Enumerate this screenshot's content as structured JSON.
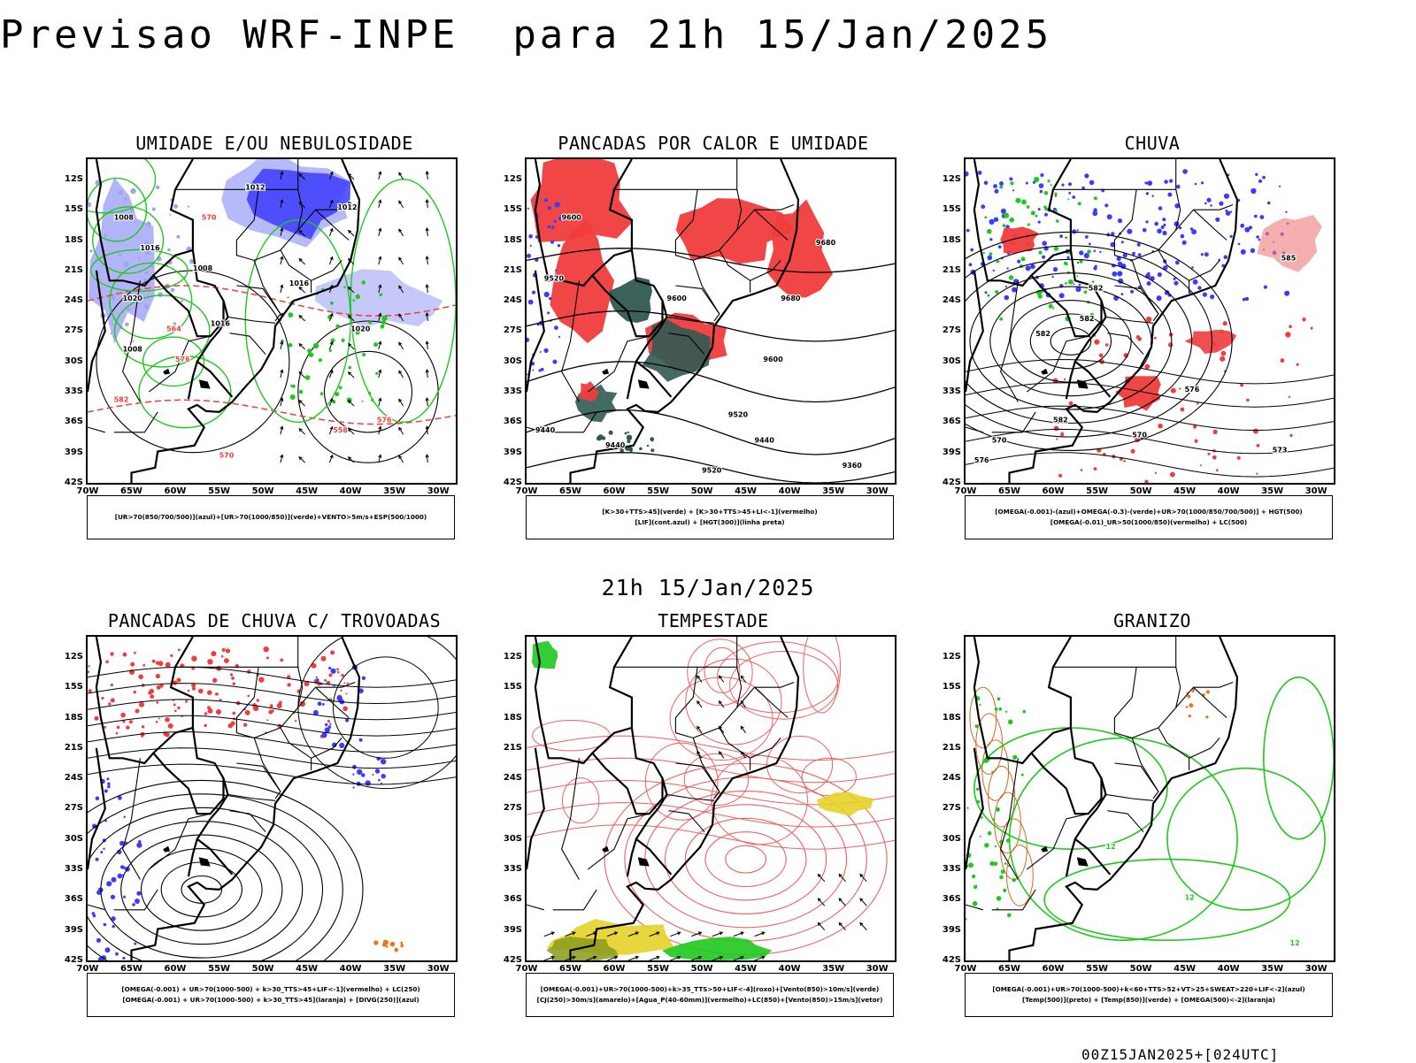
{
  "header": {
    "title": "Previsao WRF-INPE  para 21h 15/Jan/2025",
    "subtitle": "21h 15/Jan/2025",
    "footer": "00Z15JAN2025+[024UTC]"
  },
  "axes": {
    "lat_labels": [
      "12S",
      "15S",
      "18S",
      "21S",
      "24S",
      "27S",
      "30S",
      "33S",
      "36S",
      "39S",
      "42S"
    ],
    "lon_labels": [
      "70W",
      "65W",
      "60W",
      "55W",
      "50W",
      "45W",
      "40W",
      "35W",
      "30W"
    ]
  },
  "panels": [
    {
      "title": "UMIDADE E/OU NEBULOSIDADE",
      "legend": [
        "[UR>70(850/700/500)](azul)+[UR>70(1000/850)](verde)+VENTO>5m/s+ESP(500/1000)"
      ],
      "contours": [
        "1012",
        "1012",
        "1008",
        "1016",
        "1008",
        "1016",
        "1020",
        "1016",
        "1020",
        "1008",
        "576",
        "582",
        "570",
        "564",
        "558",
        "570",
        "576"
      ]
    },
    {
      "title": "PANCADAS POR CALOR E UMIDADE",
      "legend": [
        "[K>30+TTS>45](verde) + [K>30+TTS>45+LI<-1](vermelho)",
        "[LIF](cont.azul) + [HGT(300)](linha preta)"
      ],
      "contours": [
        "9600",
        "9520",
        "9680",
        "9680",
        "9600",
        "9600",
        "9520",
        "9440",
        "9440",
        "9520",
        "9360",
        "9440"
      ]
    },
    {
      "title": "CHUVA",
      "legend": [
        "[OMEGA(-0.001)-(azul)+OMEGA(-0.3)-(verde)+UR>70(1000/850/700/500)] + HGT(500)",
        "[OMEGA(-0.01)_UR>50(1000/850)(vermelho) + LC(500)"
      ],
      "contours": [
        "582",
        "585",
        "582",
        "582",
        "576",
        "573",
        "570",
        "576",
        "570",
        "582"
      ]
    },
    {
      "title": "PANCADAS DE CHUVA C/ TROVOADAS",
      "legend": [
        "[OMEGA(-0.001) + UR>70(1000-500) + k>30_TTS>45+LIF<-1](vermelho) + LC(250)",
        "[OMEGA(-0.001) + UR>70(1000-500) + k>30_TTS>45](laranja) + [DIVG(250)](azul)"
      ]
    },
    {
      "title": "TEMPESTADE",
      "legend": [
        "[OMEGA(-0.001)+UR>70(1000-500)+k>35_TTS>50+LIF<-4](roxo)+[Vento(850)>10m/s](verde)",
        "[CJ(250)>30m/s](amarelo)+[Agua_P(40-60mm)](vermelho)+LC(850)+[Vento(850)>15m/s](vetor)"
      ]
    },
    {
      "title": "GRANIZO",
      "legend": [
        "[OMEGA(-0.001)+UR>70(1000-500)+k<60+TTS>52+VT>25+SWEAT>220+LIF<-2](azul)",
        "[Temp(500)](preto) + [Temp(850)](verde) + [OMEGA(500)<-2](laranja)"
      ],
      "contours": [
        "12",
        "12",
        "12"
      ]
    }
  ],
  "colors": {
    "blue": "#3b3bff",
    "light_blue": "#9ea3f5",
    "green": "#1ec81e",
    "red": "#f03c3c",
    "dark_teal": "#2f5a52",
    "yellow": "#e6d22a",
    "orange": "#e67a1e",
    "olive": "#8a9a1a"
  }
}
